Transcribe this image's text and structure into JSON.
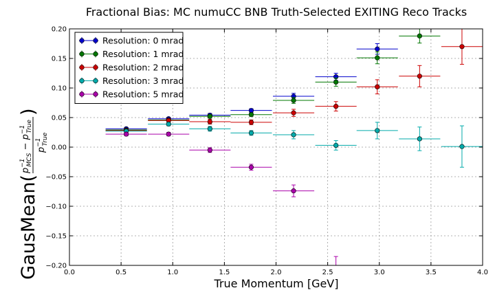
{
  "chart_data": {
    "type": "scatter",
    "title": "Fractional Bias: MC numuCC BNB Truth-Selected EXITING Reco Tracks",
    "xlabel": "True Momentum [GeV]",
    "ylabel_prefix": "GausMean(",
    "ylabel_suffix": ")",
    "ylabel_formula": "(p_MCS^-1 − p_True^-1) / p_True^-1",
    "xlim": [
      0.0,
      4.0
    ],
    "ylim": [
      -0.2,
      0.2
    ],
    "xticks": [
      0.0,
      0.5,
      1.0,
      1.5,
      2.0,
      2.5,
      3.0,
      3.5,
      4.0
    ],
    "xtick_labels": [
      "0.0",
      "0.5",
      "1.0",
      "1.5",
      "2.0",
      "2.5",
      "3.0",
      "3.5",
      "4.0"
    ],
    "yticks": [
      -0.2,
      -0.15,
      -0.1,
      -0.05,
      0.0,
      0.05,
      0.1,
      0.15,
      0.2
    ],
    "ytick_labels": [
      "−0.20",
      "−0.15",
      "−0.10",
      "−0.05",
      "0.00",
      "0.05",
      "0.10",
      "0.15",
      "0.20"
    ],
    "grid": true,
    "legend_position": "top-left",
    "x_half_width": 0.2,
    "series": [
      {
        "name": "Resolution: 0 mrad",
        "color": "#0000cc",
        "x": [
          0.55,
          0.96,
          1.36,
          1.76,
          2.17,
          2.58,
          2.98
        ],
        "y": [
          0.031,
          0.048,
          0.054,
          0.062,
          0.086,
          0.119,
          0.166
        ],
        "yerr": [
          0.002,
          0.002,
          0.003,
          0.003,
          0.005,
          0.006,
          0.009
        ]
      },
      {
        "name": "Resolution: 1 mrad",
        "color": "#007700",
        "x": [
          0.55,
          0.96,
          1.36,
          1.76,
          2.17,
          2.58,
          2.98,
          3.39
        ],
        "y": [
          0.029,
          0.046,
          0.052,
          0.055,
          0.079,
          0.11,
          0.151,
          0.188
        ],
        "yerr": [
          0.002,
          0.002,
          0.003,
          0.003,
          0.005,
          0.007,
          0.01,
          0.012
        ]
      },
      {
        "name": "Resolution: 2 mrad",
        "color": "#cc0000",
        "x": [
          0.55,
          0.96,
          1.36,
          1.76,
          2.17,
          2.58,
          2.98,
          3.39,
          3.8
        ],
        "y": [
          0.028,
          0.045,
          0.043,
          0.042,
          0.058,
          0.069,
          0.102,
          0.12,
          0.17
        ],
        "yerr": [
          0.003,
          0.003,
          0.004,
          0.004,
          0.006,
          0.008,
          0.012,
          0.018,
          0.03
        ]
      },
      {
        "name": "Resolution: 3 mrad",
        "color": "#00aaaa",
        "x": [
          0.55,
          0.96,
          1.36,
          1.76,
          2.17,
          2.58,
          2.98,
          3.39,
          3.8
        ],
        "y": [
          0.027,
          0.039,
          0.031,
          0.024,
          0.021,
          0.003,
          0.028,
          0.014,
          0.001
        ],
        "yerr": [
          0.003,
          0.003,
          0.004,
          0.004,
          0.007,
          0.008,
          0.014,
          0.02,
          0.035
        ]
      },
      {
        "name": "Resolution: 5 mrad",
        "color": "#aa00aa",
        "x": [
          0.55,
          0.96,
          1.36,
          1.76,
          2.17,
          2.58
        ],
        "y": [
          0.022,
          0.022,
          -0.005,
          -0.034,
          -0.074,
          -0.205
        ],
        "yerr": [
          0.003,
          0.003,
          0.004,
          0.005,
          0.01,
          0.02
        ]
      }
    ]
  }
}
